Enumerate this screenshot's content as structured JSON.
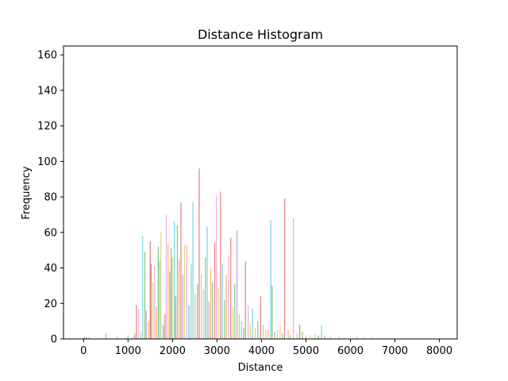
{
  "chart_data": {
    "type": "bar",
    "title": "Distance Histogram",
    "xlabel": "Distance",
    "ylabel": "Frequency",
    "xlim": [
      -450,
      8400
    ],
    "ylim": [
      0,
      165
    ],
    "xticks": [
      "0",
      "1000",
      "2000",
      "3000",
      "4000",
      "5000",
      "6000",
      "7000",
      "8000"
    ],
    "xtick_values": [
      0,
      1000,
      2000,
      3000,
      4000,
      5000,
      6000,
      7000,
      8000
    ],
    "yticks": [
      "0",
      "20",
      "40",
      "60",
      "80",
      "100",
      "120",
      "140",
      "160"
    ],
    "ytick_values": [
      0,
      20,
      40,
      60,
      80,
      100,
      120,
      140,
      160
    ],
    "grid": false,
    "legend": "none",
    "note": "overlapping semi-transparent histograms; bars listed as distance, frequency, color",
    "bars": [
      {
        "x": 20,
        "y": 1,
        "color": "#d62728"
      },
      {
        "x": 60,
        "y": 1,
        "color": "#1f77b4"
      },
      {
        "x": 120,
        "y": 1,
        "color": "#2ca02c"
      },
      {
        "x": 500,
        "y": 3,
        "color": "#17becf"
      },
      {
        "x": 760,
        "y": 1,
        "color": "#2ca02c"
      },
      {
        "x": 930,
        "y": 1,
        "color": "#bcbd22"
      },
      {
        "x": 1000,
        "y": 2,
        "color": "#17becf"
      },
      {
        "x": 1100,
        "y": 1,
        "color": "#ff7f0e"
      },
      {
        "x": 1150,
        "y": 3,
        "color": "#2ca02c"
      },
      {
        "x": 1190,
        "y": 19,
        "color": "#d62728"
      },
      {
        "x": 1240,
        "y": 17,
        "color": "#e377c2"
      },
      {
        "x": 1290,
        "y": 4,
        "color": "#bcbd22"
      },
      {
        "x": 1330,
        "y": 58,
        "color": "#17becf"
      },
      {
        "x": 1380,
        "y": 49,
        "color": "#2ca02c"
      },
      {
        "x": 1410,
        "y": 16,
        "color": "#9467bd"
      },
      {
        "x": 1460,
        "y": 10,
        "color": "#ff7f0e"
      },
      {
        "x": 1500,
        "y": 55,
        "color": "#d62728"
      },
      {
        "x": 1520,
        "y": 42,
        "color": "#8c564b"
      },
      {
        "x": 1560,
        "y": 32,
        "color": "#bcbd22"
      },
      {
        "x": 1600,
        "y": 41,
        "color": "#e377c2"
      },
      {
        "x": 1640,
        "y": 18,
        "color": "#ff7f0e"
      },
      {
        "x": 1680,
        "y": 52,
        "color": "#2ca02c"
      },
      {
        "x": 1710,
        "y": 44,
        "color": "#17becf"
      },
      {
        "x": 1740,
        "y": 60,
        "color": "#bcbd22"
      },
      {
        "x": 1790,
        "y": 8,
        "color": "#1f77b4"
      },
      {
        "x": 1830,
        "y": 14,
        "color": "#d62728"
      },
      {
        "x": 1860,
        "y": 70,
        "color": "#e377c2"
      },
      {
        "x": 1900,
        "y": 54,
        "color": "#ff7f0e"
      },
      {
        "x": 1940,
        "y": 38,
        "color": "#2ca02c"
      },
      {
        "x": 1970,
        "y": 51,
        "color": "#8c564b"
      },
      {
        "x": 2000,
        "y": 46,
        "color": "#bcbd22"
      },
      {
        "x": 2040,
        "y": 66,
        "color": "#17becf"
      },
      {
        "x": 2070,
        "y": 24,
        "color": "#d62728"
      },
      {
        "x": 2110,
        "y": 64,
        "color": "#2ca02c"
      },
      {
        "x": 2150,
        "y": 45,
        "color": "#ff7f0e"
      },
      {
        "x": 2190,
        "y": 77,
        "color": "#d62728"
      },
      {
        "x": 2230,
        "y": 36,
        "color": "#9467bd"
      },
      {
        "x": 2270,
        "y": 53,
        "color": "#bcbd22"
      },
      {
        "x": 2320,
        "y": 53,
        "color": "#e377c2"
      },
      {
        "x": 2370,
        "y": 19,
        "color": "#1f77b4"
      },
      {
        "x": 2420,
        "y": 42,
        "color": "#17becf"
      },
      {
        "x": 2460,
        "y": 77,
        "color": "#17becf"
      },
      {
        "x": 2510,
        "y": 25,
        "color": "#ff7f0e"
      },
      {
        "x": 2560,
        "y": 31,
        "color": "#2ca02c"
      },
      {
        "x": 2600,
        "y": 96,
        "color": "#d62728"
      },
      {
        "x": 2650,
        "y": 36,
        "color": "#e377c2"
      },
      {
        "x": 2700,
        "y": 28,
        "color": "#bcbd22"
      },
      {
        "x": 2740,
        "y": 46,
        "color": "#2ca02c"
      },
      {
        "x": 2780,
        "y": 63,
        "color": "#17becf"
      },
      {
        "x": 2820,
        "y": 21,
        "color": "#9467bd"
      },
      {
        "x": 2860,
        "y": 40,
        "color": "#ff7f0e"
      },
      {
        "x": 2900,
        "y": 32,
        "color": "#2ca02c"
      },
      {
        "x": 2950,
        "y": 54,
        "color": "#d62728"
      },
      {
        "x": 2990,
        "y": 81,
        "color": "#e377c2"
      },
      {
        "x": 3030,
        "y": 29,
        "color": "#bcbd22"
      },
      {
        "x": 3080,
        "y": 83,
        "color": "#d62728"
      },
      {
        "x": 3120,
        "y": 42,
        "color": "#17becf"
      },
      {
        "x": 3170,
        "y": 22,
        "color": "#2ca02c"
      },
      {
        "x": 3210,
        "y": 36,
        "color": "#ff7f0e"
      },
      {
        "x": 3260,
        "y": 47,
        "color": "#e377c2"
      },
      {
        "x": 3310,
        "y": 57,
        "color": "#d62728"
      },
      {
        "x": 3360,
        "y": 18,
        "color": "#bcbd22"
      },
      {
        "x": 3400,
        "y": 31,
        "color": "#2ca02c"
      },
      {
        "x": 3450,
        "y": 61,
        "color": "#9467bd"
      },
      {
        "x": 3500,
        "y": 14,
        "color": "#ff7f0e"
      },
      {
        "x": 3550,
        "y": 10,
        "color": "#17becf"
      },
      {
        "x": 3600,
        "y": 6,
        "color": "#2ca02c"
      },
      {
        "x": 3640,
        "y": 44,
        "color": "#d62728"
      },
      {
        "x": 3700,
        "y": 19,
        "color": "#e377c2"
      },
      {
        "x": 3750,
        "y": 9,
        "color": "#bcbd22"
      },
      {
        "x": 3800,
        "y": 17,
        "color": "#17becf"
      },
      {
        "x": 3860,
        "y": 6,
        "color": "#ff7f0e"
      },
      {
        "x": 3920,
        "y": 10,
        "color": "#2ca02c"
      },
      {
        "x": 3980,
        "y": 24,
        "color": "#d62728"
      },
      {
        "x": 4040,
        "y": 8,
        "color": "#e377c2"
      },
      {
        "x": 4100,
        "y": 5,
        "color": "#bcbd22"
      },
      {
        "x": 4150,
        "y": 5,
        "color": "#ff7f0e"
      },
      {
        "x": 4210,
        "y": 67,
        "color": "#17becf"
      },
      {
        "x": 4240,
        "y": 30,
        "color": "#2ca02c"
      },
      {
        "x": 4300,
        "y": 4,
        "color": "#9467bd"
      },
      {
        "x": 4360,
        "y": 5,
        "color": "#e377c2"
      },
      {
        "x": 4420,
        "y": 7,
        "color": "#bcbd22"
      },
      {
        "x": 4470,
        "y": 3,
        "color": "#2ca02c"
      },
      {
        "x": 4520,
        "y": 79,
        "color": "#d62728"
      },
      {
        "x": 4600,
        "y": 5,
        "color": "#ff7f0e"
      },
      {
        "x": 4650,
        "y": 2,
        "color": "#17becf"
      },
      {
        "x": 4720,
        "y": 68,
        "color": "#e377c2"
      },
      {
        "x": 4800,
        "y": 3,
        "color": "#bcbd22"
      },
      {
        "x": 4860,
        "y": 8,
        "color": "#d62728"
      },
      {
        "x": 4920,
        "y": 4,
        "color": "#2ca02c"
      },
      {
        "x": 5000,
        "y": 2,
        "color": "#ff7f0e"
      },
      {
        "x": 5100,
        "y": 2,
        "color": "#e377c2"
      },
      {
        "x": 5200,
        "y": 3,
        "color": "#bcbd22"
      },
      {
        "x": 5280,
        "y": 2,
        "color": "#2ca02c"
      },
      {
        "x": 5350,
        "y": 8,
        "color": "#17becf"
      },
      {
        "x": 5420,
        "y": 2,
        "color": "#9467bd"
      },
      {
        "x": 5550,
        "y": 1,
        "color": "#ff7f0e"
      },
      {
        "x": 5750,
        "y": 1,
        "color": "#2ca02c"
      },
      {
        "x": 6150,
        "y": 1,
        "color": "#17becf"
      },
      {
        "x": 6300,
        "y": 1,
        "color": "#e377c2"
      },
      {
        "x": 6480,
        "y": 1,
        "color": "#bcbd22"
      }
    ]
  }
}
